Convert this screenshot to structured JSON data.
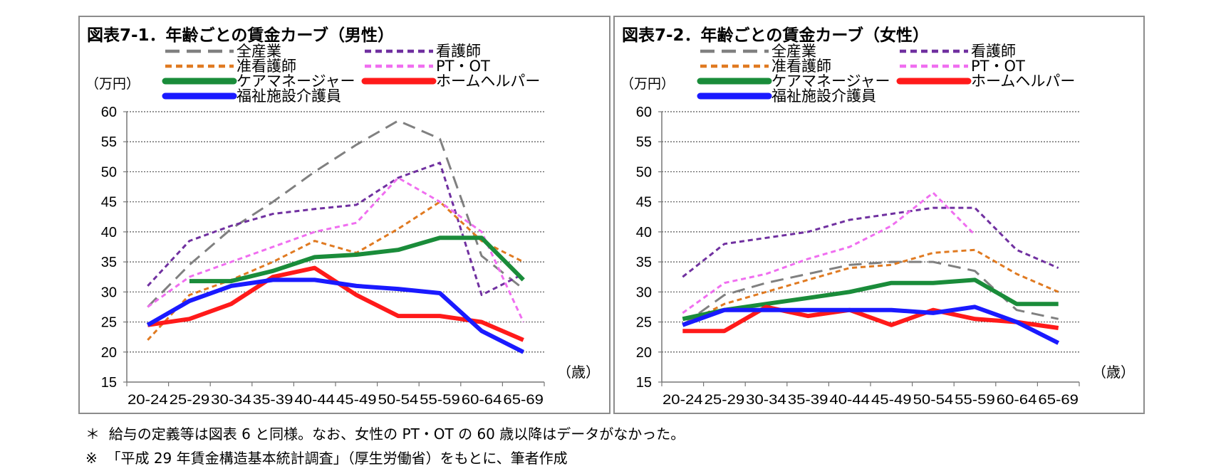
{
  "charts": [
    {
      "id": "male",
      "title": "図表7-1．年齢ごとの賃金カーブ（男性）",
      "ylabel": "（万円）",
      "xunit": "（歳）"
    },
    {
      "id": "female",
      "title": "図表7-2．年齢ごとの賃金カーブ（女性）",
      "ylabel": "（万円）",
      "xunit": "（歳）"
    }
  ],
  "notes": [
    "＊  給与の定義等は図表 6 と同様。なお、女性の PT・OT の 60 歳以降はデータがなかった。",
    "※  「平成 29 年賃金構造基本統計調査」（厚生労働省）をもとに、筆者作成"
  ],
  "chart_data": [
    {
      "type": "line",
      "title": "図表7-1．年齢ごとの賃金カーブ（男性）",
      "ylabel": "（万円）",
      "xlabel": "（歳）",
      "ylim": [
        15,
        60
      ],
      "yticks": [
        15,
        20,
        25,
        30,
        35,
        40,
        45,
        50,
        55,
        60
      ],
      "grid": "horizontal-dotted",
      "categories": [
        "20-24",
        "25-29",
        "30-34",
        "35-39",
        "40-44",
        "45-49",
        "50-54",
        "55-59",
        "60-64",
        "65-69"
      ],
      "series": [
        {
          "name": "全産業",
          "color": "#808080",
          "dash": "long",
          "values": [
            27.5,
            34.5,
            40.5,
            45.0,
            50.0,
            54.5,
            58.5,
            55.5,
            36.0,
            30.5
          ]
        },
        {
          "name": "看護師",
          "color": "#7030a0",
          "dash": "short",
          "values": [
            31.0,
            38.5,
            41.0,
            43.0,
            43.8,
            44.5,
            49.0,
            51.5,
            29.5,
            33.0
          ]
        },
        {
          "name": "准看護師",
          "color": "#e07a21",
          "dash": "short",
          "values": [
            22.0,
            29.5,
            32.0,
            35.0,
            38.5,
            36.5,
            40.5,
            45.0,
            38.5,
            35.0
          ]
        },
        {
          "name": "PT・OT",
          "color": "#f06ef0",
          "dash": "short",
          "values": [
            27.5,
            32.5,
            35.0,
            37.5,
            40.0,
            41.5,
            49.0,
            45.0,
            40.0,
            25.0
          ]
        },
        {
          "name": "ケアマネージャー",
          "color": "#1a8c3a",
          "dash": "solid",
          "values": [
            null,
            31.8,
            31.8,
            33.5,
            35.8,
            36.2,
            37.0,
            39.0,
            39.0,
            32.0
          ]
        },
        {
          "name": "ホームヘルパー",
          "color": "#ff1a1a",
          "dash": "solid",
          "values": [
            24.5,
            25.5,
            28.0,
            32.5,
            34.0,
            29.5,
            26.0,
            26.0,
            25.0,
            22.0
          ]
        },
        {
          "name": "福祉施設介護員",
          "color": "#1a1aff",
          "dash": "solid",
          "values": [
            24.5,
            28.5,
            31.0,
            32.0,
            32.0,
            31.0,
            30.5,
            29.8,
            23.5,
            20.0
          ]
        }
      ]
    },
    {
      "type": "line",
      "title": "図表7-2．年齢ごとの賃金カーブ（女性）",
      "ylabel": "（万円）",
      "xlabel": "（歳）",
      "ylim": [
        15,
        60
      ],
      "yticks": [
        15,
        20,
        25,
        30,
        35,
        40,
        45,
        50,
        55,
        60
      ],
      "grid": "horizontal-dotted",
      "categories": [
        "20-24",
        "25-29",
        "30-34",
        "35-39",
        "40-44",
        "45-49",
        "50-54",
        "55-59",
        "60-64",
        "65-69"
      ],
      "series": [
        {
          "name": "全産業",
          "color": "#808080",
          "dash": "long",
          "values": [
            24.5,
            29.5,
            31.5,
            33.0,
            34.5,
            35.0,
            35.0,
            33.5,
            27.0,
            25.5
          ]
        },
        {
          "name": "看護師",
          "color": "#7030a0",
          "dash": "short",
          "values": [
            32.5,
            38.0,
            39.0,
            40.0,
            42.0,
            43.0,
            44.0,
            44.0,
            37.0,
            34.0
          ]
        },
        {
          "name": "准看護師",
          "color": "#e07a21",
          "dash": "short",
          "values": [
            24.5,
            28.0,
            30.0,
            32.0,
            34.0,
            34.5,
            36.5,
            37.0,
            33.0,
            30.0
          ]
        },
        {
          "name": "PT・OT",
          "color": "#f06ef0",
          "dash": "short",
          "values": [
            26.5,
            31.5,
            33.0,
            35.5,
            37.5,
            41.0,
            46.5,
            39.5,
            null,
            null
          ]
        },
        {
          "name": "ケアマネージャー",
          "color": "#1a8c3a",
          "dash": "solid",
          "values": [
            25.5,
            27.0,
            28.0,
            29.0,
            30.0,
            31.5,
            31.5,
            32.0,
            28.0,
            28.0
          ]
        },
        {
          "name": "ホームヘルパー",
          "color": "#ff1a1a",
          "dash": "solid",
          "values": [
            23.5,
            23.5,
            27.5,
            26.0,
            27.0,
            24.5,
            27.0,
            25.5,
            25.0,
            24.0
          ]
        },
        {
          "name": "福祉施設介護員",
          "color": "#1a1aff",
          "dash": "solid",
          "values": [
            24.5,
            27.0,
            27.0,
            27.0,
            27.0,
            27.0,
            26.5,
            27.5,
            25.0,
            21.5
          ]
        }
      ]
    }
  ]
}
